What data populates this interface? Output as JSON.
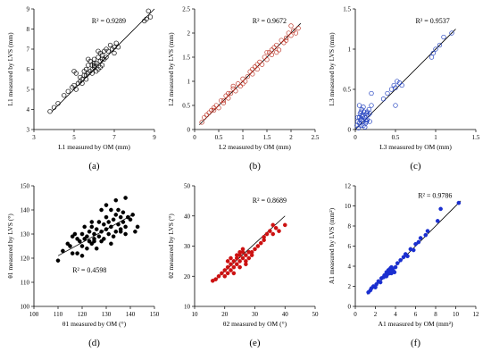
{
  "chart_data": [
    {
      "type": "scatter",
      "panel_label": "(a)",
      "xlabel": "L1 measured by OM (mm)",
      "ylabel": "L1 measured by LVS (mm)",
      "xlim": [
        3,
        9
      ],
      "ylim": [
        3,
        9
      ],
      "xticks": [
        3,
        5,
        7,
        9
      ],
      "yticks": [
        3,
        4,
        5,
        6,
        7,
        8,
        9
      ],
      "r2": "R² = 0.9289",
      "marker": "open-circle",
      "marker_color": "#000000",
      "fit_line": {
        "x": [
          3.9,
          9.0
        ],
        "y": [
          3.9,
          9.0
        ]
      },
      "x": [
        3.8,
        4.0,
        4.2,
        4.5,
        4.7,
        4.9,
        5.0,
        5.0,
        5.1,
        5.1,
        5.2,
        5.3,
        5.3,
        5.4,
        5.4,
        5.5,
        5.5,
        5.6,
        5.6,
        5.6,
        5.7,
        5.7,
        5.8,
        5.8,
        5.9,
        5.9,
        6.0,
        6.0,
        6.0,
        6.1,
        6.1,
        6.2,
        6.2,
        6.3,
        6.3,
        6.3,
        6.4,
        6.4,
        6.5,
        6.5,
        6.6,
        6.7,
        6.8,
        6.9,
        7.0,
        7.0,
        7.1,
        7.2,
        8.5,
        8.6,
        8.7,
        8.8,
        6.2,
        5.7,
        6.0,
        6.4,
        5.9,
        6.6
      ],
      "y": [
        3.9,
        4.1,
        4.3,
        4.7,
        4.9,
        5.1,
        5.9,
        5.2,
        5.8,
        5.0,
        5.3,
        5.4,
        5.6,
        5.5,
        5.3,
        5.7,
        5.9,
        5.7,
        6.0,
        5.5,
        5.8,
        6.2,
        5.9,
        6.4,
        6.0,
        5.8,
        6.2,
        6.5,
        6.1,
        6.3,
        5.9,
        6.0,
        6.6,
        6.1,
        6.4,
        6.8,
        6.2,
        6.7,
        6.5,
        6.9,
        6.6,
        6.9,
        7.2,
        7.0,
        7.1,
        6.8,
        7.3,
        7.1,
        8.4,
        8.5,
        8.9,
        8.6,
        6.9,
        6.5,
        6.3,
        6.5,
        6.2,
        7.0
      ]
    },
    {
      "type": "scatter",
      "panel_label": "(b)",
      "xlabel": "L2 measured by OM (mm)",
      "ylabel": "L2 measured by LVS (mm)",
      "xlim": [
        0,
        2.5
      ],
      "ylim": [
        0,
        2.5
      ],
      "xticks": [
        0,
        0.5,
        1,
        1.5,
        2,
        2.5
      ],
      "yticks": [
        0,
        0.5,
        1,
        1.5,
        2,
        2.5
      ],
      "xtick_labels": [
        "0",
        "0.5",
        "1",
        "1.5",
        "2",
        "2.5"
      ],
      "ytick_labels": [
        "0",
        "0.5",
        "1",
        "1.5",
        "2",
        "2.5"
      ],
      "r2": "R² = 0.9672",
      "marker": "open-circle",
      "marker_color": "#c0392b",
      "fit_line": {
        "x": [
          0.1,
          2.2
        ],
        "y": [
          0.1,
          2.2
        ]
      },
      "x": [
        0.15,
        0.2,
        0.25,
        0.3,
        0.35,
        0.4,
        0.45,
        0.5,
        0.55,
        0.6,
        0.65,
        0.7,
        0.75,
        0.8,
        0.85,
        0.9,
        0.95,
        1.0,
        1.05,
        1.1,
        1.15,
        1.2,
        1.25,
        1.3,
        1.35,
        1.4,
        1.45,
        1.5,
        1.55,
        1.6,
        1.65,
        1.7,
        1.75,
        1.8,
        1.85,
        1.9,
        1.95,
        2.0,
        2.05,
        2.1,
        2.15,
        0.6,
        0.8,
        1.0,
        1.3,
        1.5,
        1.7,
        1.9,
        0.4,
        0.7,
        1.2,
        1.6,
        2.0
      ],
      "y": [
        0.15,
        0.25,
        0.3,
        0.35,
        0.4,
        0.45,
        0.5,
        0.45,
        0.6,
        0.6,
        0.7,
        0.65,
        0.75,
        0.85,
        0.8,
        0.95,
        0.9,
        1.05,
        1.0,
        1.1,
        1.2,
        1.15,
        1.3,
        1.25,
        1.4,
        1.35,
        1.5,
        1.45,
        1.6,
        1.55,
        1.7,
        1.75,
        1.65,
        1.85,
        1.8,
        1.9,
        2.0,
        1.95,
        2.05,
        2.0,
        2.1,
        0.55,
        0.9,
        0.95,
        1.35,
        1.6,
        1.6,
        1.85,
        0.4,
        0.75,
        1.25,
        1.65,
        2.15
      ]
    },
    {
      "type": "scatter",
      "panel_label": "(c)",
      "xlabel": "L3 measured by OM (mm)",
      "ylabel": "L3 measured by LVS (mm)",
      "xlim": [
        0,
        1.5
      ],
      "ylim": [
        0,
        1.5
      ],
      "xticks": [
        0,
        0.5,
        1,
        1.5
      ],
      "yticks": [
        0,
        0.5,
        1,
        1.5
      ],
      "xtick_labels": [
        "0",
        "0.5",
        "1",
        "1.5"
      ],
      "ytick_labels": [
        "0",
        "0.5",
        "1",
        "1.5"
      ],
      "r2": "R² = 0.9537",
      "marker": "open-circle",
      "marker_color": "#1f3fbf",
      "fit_line": {
        "x": [
          0.0,
          1.25
        ],
        "y": [
          0.0,
          1.25
        ]
      },
      "x": [
        0.02,
        0.03,
        0.04,
        0.05,
        0.05,
        0.06,
        0.07,
        0.08,
        0.08,
        0.09,
        0.1,
        0.1,
        0.11,
        0.12,
        0.13,
        0.14,
        0.15,
        0.16,
        0.17,
        0.18,
        0.2,
        0.05,
        0.08,
        0.12,
        0.15,
        0.03,
        0.06,
        0.1,
        0.14,
        0.18,
        0.2,
        0.35,
        0.4,
        0.45,
        0.48,
        0.5,
        0.52,
        0.55,
        0.5,
        0.58,
        0.95,
        0.97,
        1.0,
        1.05,
        1.1,
        1.2,
        0.07,
        0.09,
        0.13
      ],
      "y": [
        0.05,
        0.1,
        0.02,
        0.08,
        0.15,
        0.2,
        0.05,
        0.12,
        0.25,
        0.1,
        0.18,
        0.05,
        0.22,
        0.15,
        0.08,
        0.2,
        0.12,
        0.18,
        0.25,
        0.1,
        0.3,
        0.3,
        0.18,
        0.03,
        0.22,
        0.15,
        0.12,
        0.28,
        0.1,
        0.2,
        0.45,
        0.38,
        0.45,
        0.5,
        0.55,
        0.52,
        0.6,
        0.58,
        0.3,
        0.55,
        0.9,
        0.95,
        1.0,
        1.05,
        1.15,
        1.2,
        0.22,
        0.16,
        0.12
      ]
    },
    {
      "type": "scatter",
      "panel_label": "(d)",
      "xlabel": "θ1 measured by OM (°)",
      "ylabel": "θ1 measured by LVS (°)",
      "xlim": [
        100,
        150
      ],
      "ylim": [
        100,
        150
      ],
      "xticks": [
        100,
        110,
        120,
        130,
        140,
        150
      ],
      "yticks": [
        100,
        110,
        120,
        130,
        140,
        150
      ],
      "r2": "R² = 0.4598",
      "marker": "filled-circle",
      "marker_color": "#000000",
      "fit_line": {
        "x": [
          110,
          141
        ],
        "y": [
          121,
          138
        ]
      },
      "x": [
        110,
        112,
        114,
        115,
        116,
        117,
        118,
        118,
        119,
        120,
        120,
        121,
        121,
        122,
        122,
        123,
        123,
        124,
        124,
        125,
        125,
        126,
        126,
        127,
        127,
        128,
        128,
        129,
        129,
        130,
        130,
        131,
        131,
        132,
        132,
        133,
        133,
        134,
        134,
        135,
        135,
        136,
        136,
        137,
        137,
        138,
        138,
        139,
        140,
        141,
        142,
        143,
        120,
        124,
        128,
        132,
        136,
        116,
        125,
        130,
        134,
        138
      ],
      "y": [
        119,
        123,
        126,
        125,
        129,
        130,
        128,
        122,
        127,
        125,
        130,
        128,
        133,
        124,
        129,
        127,
        131,
        126,
        133,
        128,
        130,
        132,
        124,
        129,
        135,
        131,
        127,
        134,
        128,
        132,
        137,
        130,
        135,
        133,
        140,
        129,
        136,
        131,
        138,
        134,
        140,
        132,
        137,
        135,
        139,
        133,
        145,
        137,
        136,
        138,
        131,
        133,
        121,
        135,
        140,
        126,
        131,
        122,
        127,
        142,
        144,
        130
      ]
    },
    {
      "type": "scatter",
      "panel_label": "(e)",
      "xlabel": "θ2 measured by OM (°)",
      "ylabel": "θ2 measured by LVS (°)",
      "xlim": [
        10,
        50
      ],
      "ylim": [
        10,
        50
      ],
      "xticks": [
        10,
        20,
        30,
        40,
        50
      ],
      "yticks": [
        10,
        20,
        30,
        40,
        50
      ],
      "r2": "R² = 0.8689",
      "marker": "filled-circle",
      "marker_color": "#cc1111",
      "fit_line": {
        "x": [
          16,
          40
        ],
        "y": [
          18,
          40
        ]
      },
      "x": [
        16,
        17,
        18,
        19,
        20,
        20,
        21,
        21,
        22,
        22,
        23,
        23,
        24,
        24,
        25,
        25,
        25,
        26,
        26,
        27,
        27,
        28,
        28,
        29,
        30,
        31,
        32,
        33,
        34,
        35,
        36,
        37,
        38,
        40,
        22,
        24,
        26,
        23,
        25,
        27,
        21,
        29,
        33,
        36
      ],
      "y": [
        18.5,
        19,
        20,
        21,
        20,
        22,
        21,
        23,
        22,
        24,
        25,
        23,
        26,
        24,
        27,
        25,
        28,
        26,
        29,
        27,
        25,
        28,
        26,
        28,
        29,
        30,
        31,
        33,
        34,
        35,
        34,
        36,
        35,
        37,
        26,
        27,
        28,
        21,
        23,
        24,
        25,
        27,
        32,
        37
      ]
    },
    {
      "type": "scatter",
      "panel_label": "(f)",
      "xlabel": "A1 measured by OM (mm²)",
      "ylabel": "A1 measured by LVS (mm²)",
      "xlim": [
        0,
        12
      ],
      "ylim": [
        0,
        12
      ],
      "xticks": [
        0,
        2,
        4,
        6,
        8,
        10,
        12
      ],
      "yticks": [
        0,
        2,
        4,
        6,
        8,
        10,
        12
      ],
      "r2": "R² = 0.9786",
      "marker": "filled-circle",
      "marker_color": "#1a2fd0",
      "fit_line": {
        "x": [
          1.2,
          10.5
        ],
        "y": [
          1.2,
          10.5
        ]
      },
      "x": [
        1.3,
        1.5,
        1.6,
        1.8,
        2.0,
        2.1,
        2.3,
        2.5,
        2.6,
        2.8,
        3.0,
        3.1,
        3.2,
        3.3,
        3.4,
        3.5,
        3.6,
        3.7,
        3.8,
        4.0,
        4.2,
        4.5,
        4.8,
        5.0,
        5.2,
        5.5,
        5.8,
        6.0,
        6.3,
        6.5,
        7.0,
        7.2,
        8.2,
        8.5,
        10.3,
        3.1,
        3.4,
        3.6,
        3.9,
        2.9,
        3.3
      ],
      "y": [
        1.4,
        1.6,
        1.8,
        2.0,
        1.9,
        2.2,
        2.5,
        2.4,
        2.8,
        2.9,
        3.0,
        3.4,
        3.2,
        3.6,
        3.5,
        3.8,
        3.3,
        3.7,
        3.5,
        3.9,
        4.3,
        4.6,
        4.9,
        5.2,
        5.0,
        5.7,
        5.6,
        6.2,
        6.4,
        6.8,
        7.1,
        7.5,
        8.5,
        9.7,
        10.3,
        3.0,
        3.3,
        3.9,
        3.4,
        3.1,
        3.6
      ]
    }
  ]
}
